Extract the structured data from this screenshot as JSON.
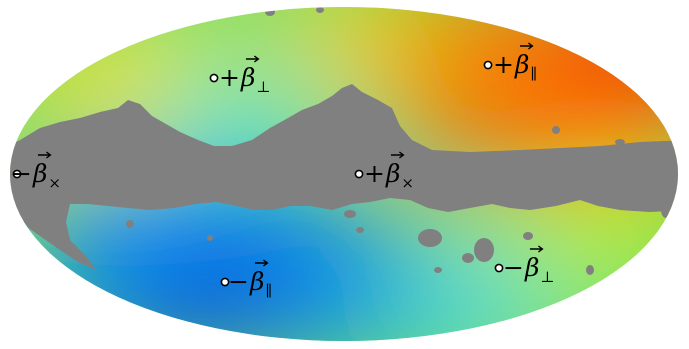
{
  "figure": {
    "projection": "mollweide",
    "colors": {
      "mask": "#808080",
      "background": "#ffffff",
      "cold": "#0030e0",
      "warm": "#ff3000"
    },
    "markers": [
      {
        "id": "plus-beta-parallel",
        "sign": "+",
        "symbol": "β",
        "subscript": "∥"
      },
      {
        "id": "minus-beta-parallel",
        "sign": "−",
        "symbol": "β",
        "subscript": "∥"
      },
      {
        "id": "plus-beta-perp",
        "sign": "+",
        "symbol": "β",
        "subscript": "⊥"
      },
      {
        "id": "minus-beta-perp",
        "sign": "−",
        "symbol": "β",
        "subscript": "⊥"
      },
      {
        "id": "plus-beta-cross",
        "sign": "+",
        "symbol": "β",
        "subscript": "×"
      },
      {
        "id": "minus-beta-cross",
        "sign": "−",
        "symbol": "β",
        "subscript": "×"
      }
    ]
  }
}
